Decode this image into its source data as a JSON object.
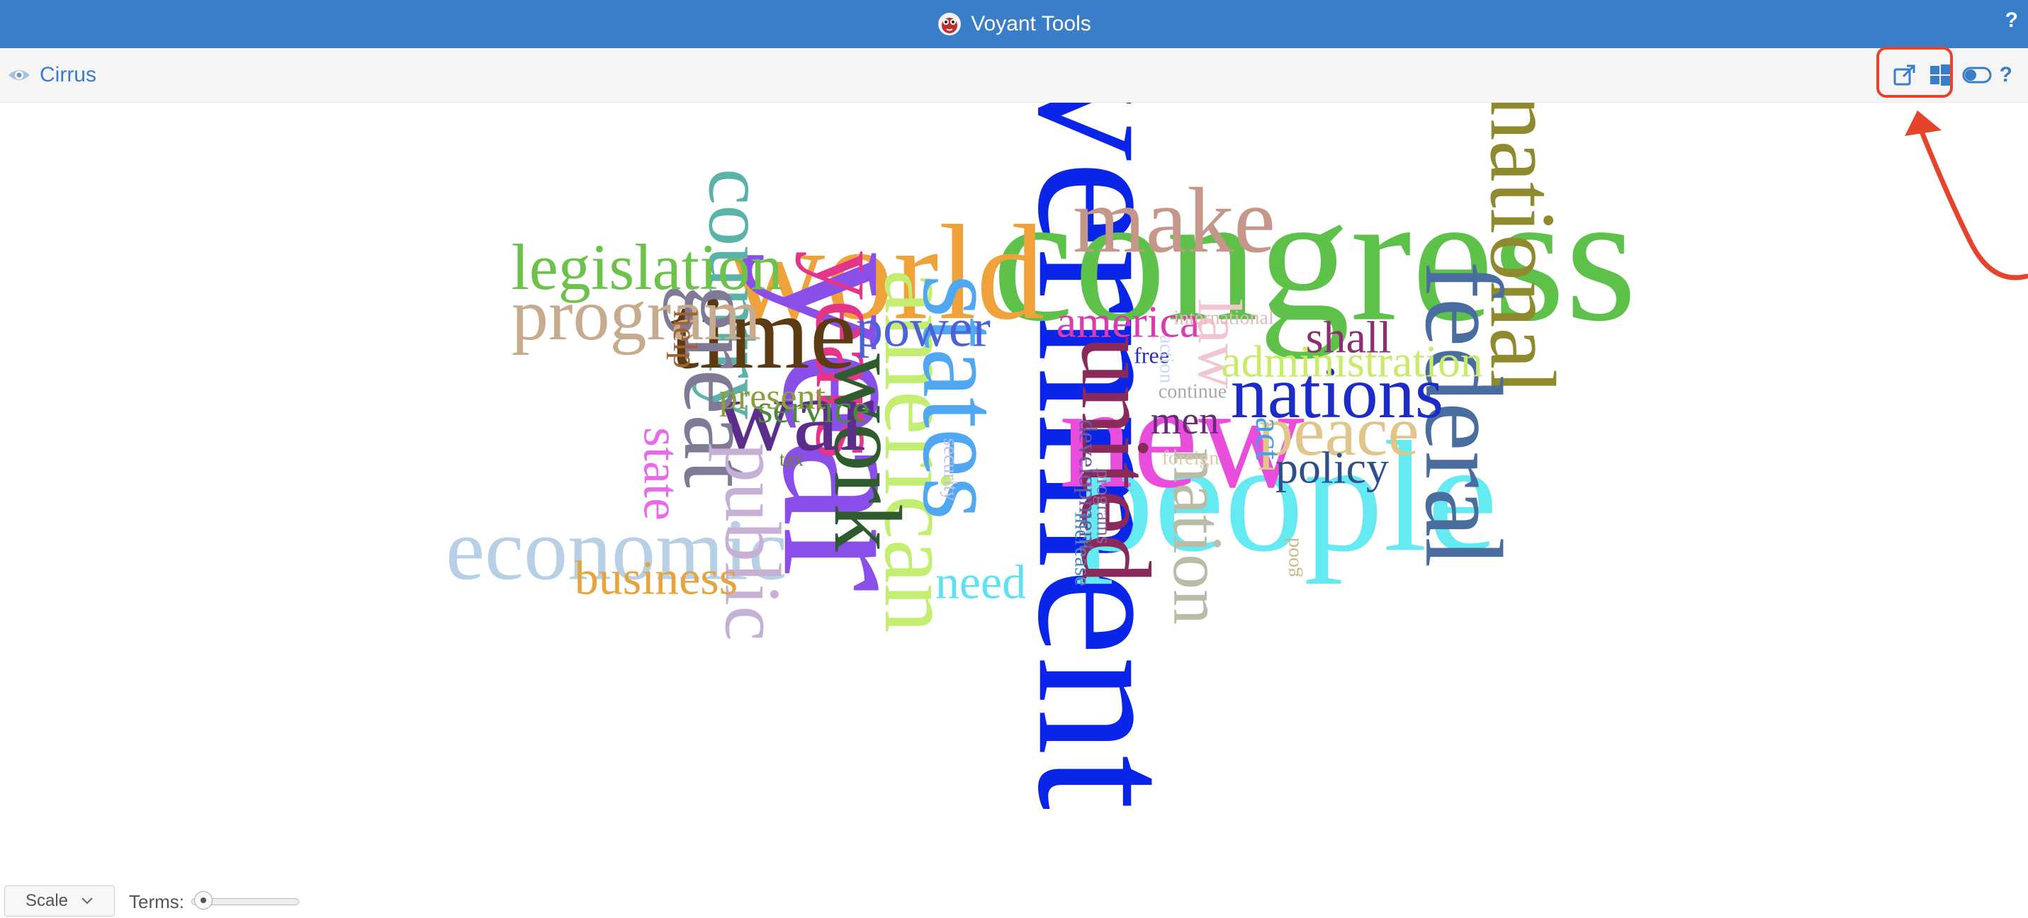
{
  "app": {
    "title": "Voyant Tools",
    "help_label": "?"
  },
  "panel": {
    "title": "Cirrus",
    "help_label": "?"
  },
  "footer": {
    "scale_label": "Scale",
    "terms_label": "Terms:",
    "terms_value_fraction": 0.05
  },
  "icons": [
    "voyant-logo-icon",
    "eye-icon",
    "export-icon",
    "windows-icon",
    "toggle-icon",
    "help-icon",
    "chevron-down-icon"
  ],
  "colors": {
    "header": "#3a7dc9",
    "annotation": "#e5442b"
  },
  "cloud": {
    "words": [
      {
        "text": "government",
        "color": "#0a25e8",
        "rot": 90
      },
      {
        "text": "congress",
        "color": "#5ec14a",
        "rot": 0
      },
      {
        "text": "people",
        "color": "#66eaf2",
        "rot": 0
      },
      {
        "text": "new",
        "color": "#e84ddc",
        "rot": 0
      },
      {
        "text": "world",
        "color": "#f0a23a",
        "rot": 0
      },
      {
        "text": "year",
        "color": "#8a4fe8",
        "rot": 90
      },
      {
        "text": "national",
        "color": "#8f8a2e",
        "rot": 90
      },
      {
        "text": "american",
        "color": "#c4ee72",
        "rot": 90
      },
      {
        "text": "states",
        "color": "#50a8f2",
        "rot": 90
      },
      {
        "text": "federal",
        "color": "#4a6da0",
        "rot": 90
      },
      {
        "text": "united",
        "color": "#8a2a5a",
        "rot": 90
      },
      {
        "text": "years",
        "color": "#e5358a",
        "rot": 90
      },
      {
        "text": "work",
        "color": "#2e5c2e",
        "rot": 90
      },
      {
        "text": "country",
        "color": "#5ab3a8",
        "rot": 90
      },
      {
        "text": "time",
        "color": "#5c3a12",
        "rot": 0
      },
      {
        "text": "war",
        "color": "#5b2e8c",
        "rot": 0
      },
      {
        "text": "great",
        "color": "#807a96",
        "rot": 90
      },
      {
        "text": "economic",
        "color": "#b8d0e6",
        "rot": 0
      },
      {
        "text": "public",
        "color": "#c7b0d6",
        "rot": 90
      },
      {
        "text": "nation",
        "color": "#b9bca6",
        "rot": 90
      },
      {
        "text": "make",
        "color": "#c4978a",
        "rot": 0
      },
      {
        "text": "nations",
        "color": "#1b2dc6",
        "rot": 0
      },
      {
        "text": "peace",
        "color": "#e0c68a",
        "rot": 0
      },
      {
        "text": "program",
        "color": "#c7ab8f",
        "rot": 0
      },
      {
        "text": "legislation",
        "color": "#6cc24a",
        "rot": 0
      },
      {
        "text": "power",
        "color": "#4b62d8",
        "rot": 0
      },
      {
        "text": "america",
        "color": "#d83cae",
        "rot": 0
      },
      {
        "text": "law",
        "color": "#f2c6d0",
        "rot": 90
      },
      {
        "text": "administration",
        "color": "#c9ea6a",
        "rot": 0
      },
      {
        "text": "shall",
        "color": "#8c2f6e",
        "rot": 0
      },
      {
        "text": "policy",
        "color": "#2e4e8c",
        "rot": 0
      },
      {
        "text": "business",
        "color": "#e8a43c",
        "rot": 0
      },
      {
        "text": "need",
        "color": "#5ee2f2",
        "rot": 0
      },
      {
        "text": "state",
        "color": "#e86ae8",
        "rot": 90
      },
      {
        "text": "service",
        "color": "#4a8a3a",
        "rot": 0
      },
      {
        "text": "present",
        "color": "#8aa03c",
        "rot": 0
      },
      {
        "text": "men",
        "color": "#6a2a7a",
        "rot": 0
      },
      {
        "text": "act",
        "color": "#4aa0e8",
        "rot": 90
      },
      {
        "text": "help",
        "color": "#a0622e",
        "rot": 90
      },
      {
        "text": "international",
        "color": "#e6b8b8",
        "rot": 0
      },
      {
        "text": "free",
        "color": "#2a2ac0",
        "rot": 0
      },
      {
        "text": "continue",
        "color": "#a8a8a8",
        "rot": 0
      },
      {
        "text": "foreign",
        "color": "#e0c6aa",
        "rot": 0
      },
      {
        "text": "tax",
        "color": "#6a8a2a",
        "rot": 0
      },
      {
        "text": "security",
        "color": "#c0c0e8",
        "rot": 90
      },
      {
        "text": "development",
        "color": "#6a5aa0",
        "rot": 90
      },
      {
        "text": "programs",
        "color": "#8a6aa0",
        "rot": 90
      },
      {
        "text": "increase",
        "color": "#4a8ac0",
        "rot": 90
      },
      {
        "text": "action",
        "color": "#c8d8f0",
        "rot": 90
      },
      {
        "text": "good",
        "color": "#c8b88a",
        "rot": -90
      }
    ]
  }
}
